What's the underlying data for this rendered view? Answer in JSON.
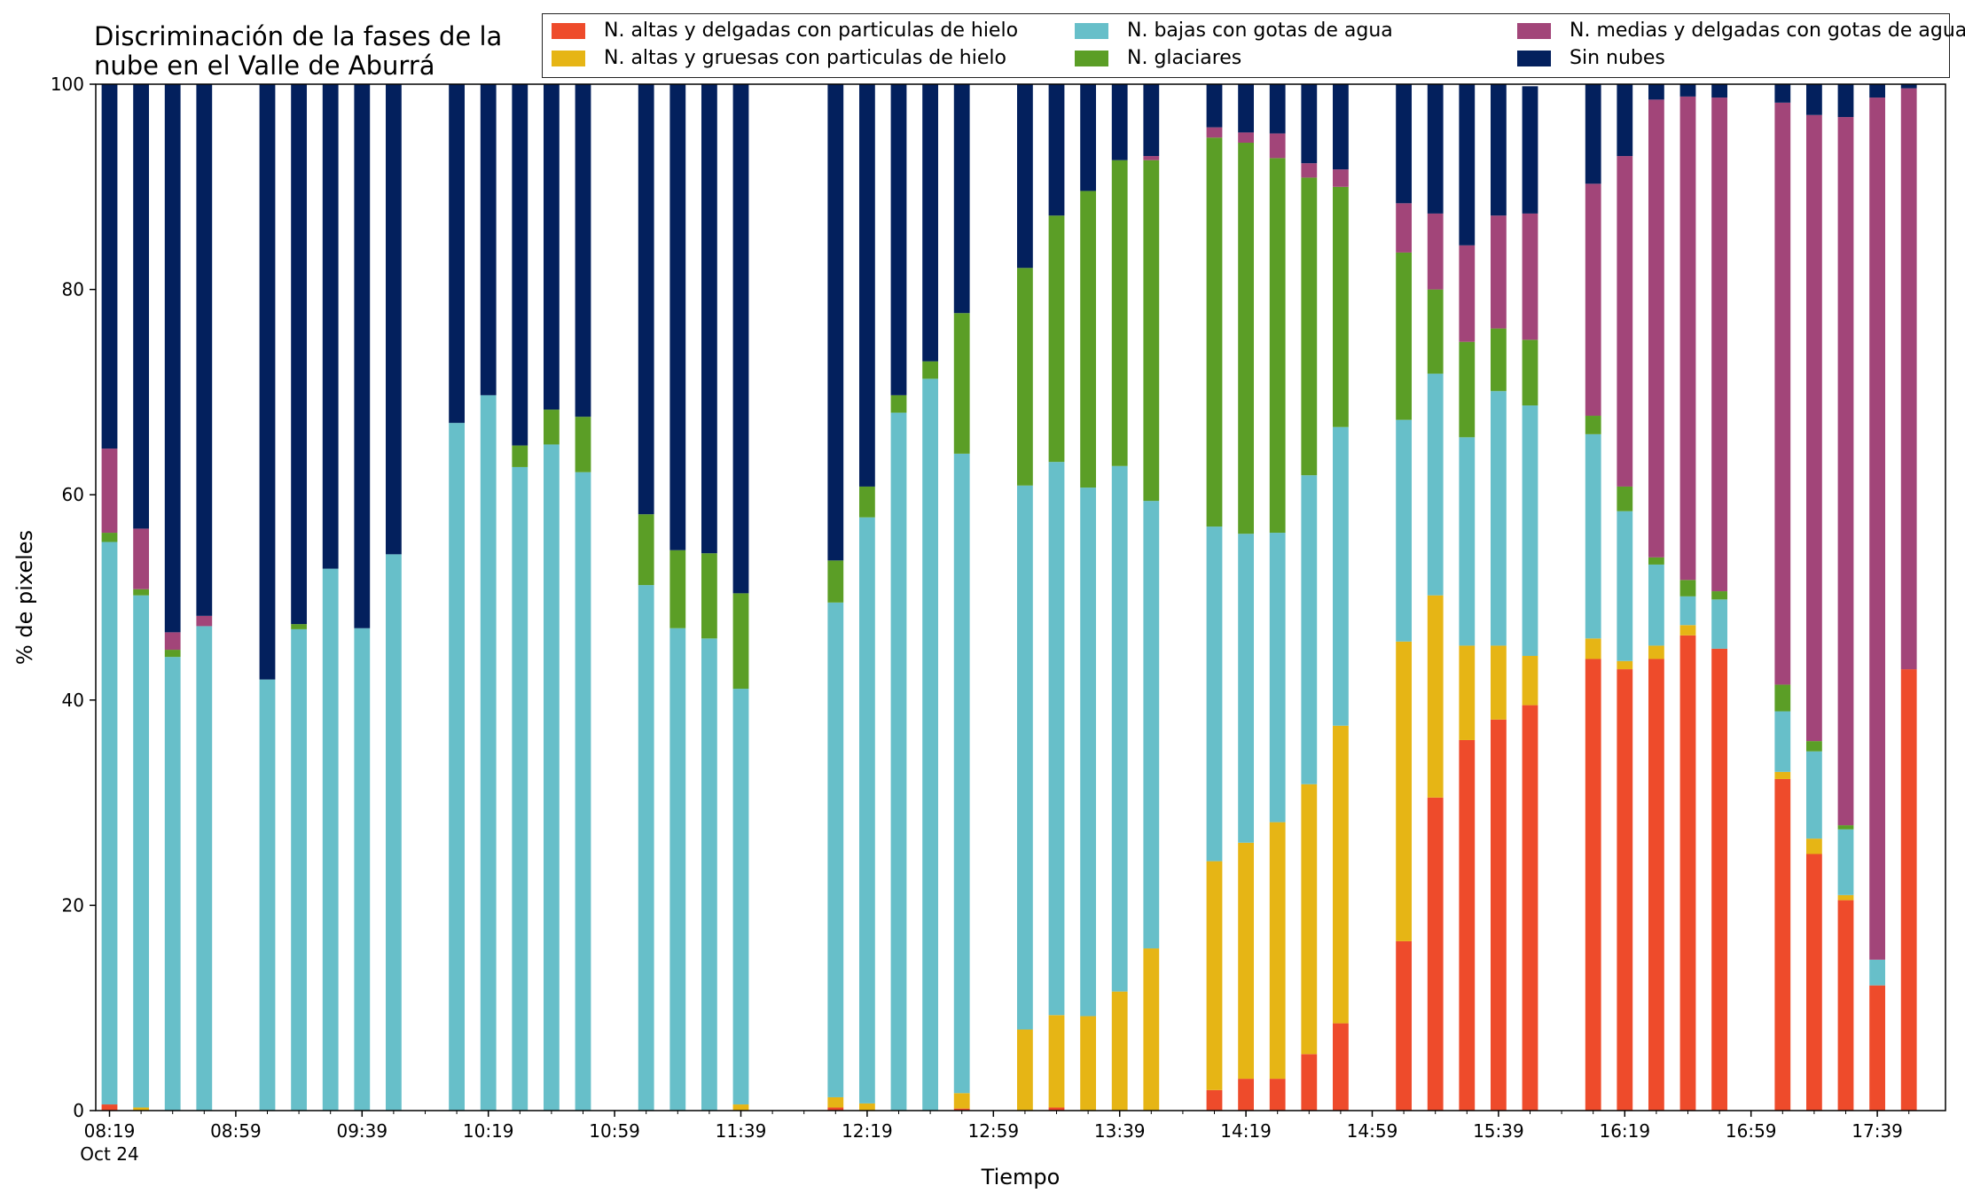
{
  "chart_data": {
    "type": "bar",
    "stacked": true,
    "title": [
      "Discriminación de la fases de la",
      "nube en el Valle de Aburrá"
    ],
    "xlabel": "Tiempo",
    "ylabel": "% de pixeles",
    "ylim": [
      0,
      100
    ],
    "yticks": [
      0,
      20,
      40,
      60,
      80,
      100
    ],
    "xtick_labels": [
      "08:19",
      "08:59",
      "09:39",
      "10:19",
      "10:59",
      "11:39",
      "12:19",
      "12:59",
      "13:39",
      "14:19",
      "14:59",
      "15:39",
      "16:19",
      "16:59",
      "17:39"
    ],
    "xtick_sublabel": "Oct 24",
    "x_start": "08:19",
    "x_step_minutes": 10,
    "x": [
      "08:19",
      "08:29",
      "08:39",
      "08:49",
      "08:59",
      "09:09",
      "09:19",
      "09:29",
      "09:39",
      "09:49",
      "09:59",
      "10:09",
      "10:19",
      "10:29",
      "10:39",
      "10:49",
      "10:59",
      "11:09",
      "11:19",
      "11:29",
      "11:39",
      "11:49",
      "11:59",
      "12:09",
      "12:19",
      "12:29",
      "12:39",
      "12:49",
      "12:59",
      "13:09",
      "13:19",
      "13:29",
      "13:39",
      "13:49",
      "13:59",
      "14:09",
      "14:19",
      "14:29",
      "14:39",
      "14:49",
      "14:59",
      "15:09",
      "15:19",
      "15:29",
      "15:39",
      "15:49",
      "15:59",
      "16:09",
      "16:19",
      "16:29",
      "16:39",
      "16:49",
      "16:59",
      "17:09",
      "17:19",
      "17:29",
      "17:39",
      "17:49"
    ],
    "legend_position": "top-right",
    "grid": false,
    "series": [
      {
        "name": "N. altas y delgadas con particulas de hielo",
        "color": "#ee4b2b",
        "values": [
          0.6,
          0,
          0,
          0,
          null,
          0,
          0,
          0,
          0,
          0,
          null,
          0,
          0,
          0,
          0,
          0,
          null,
          0,
          0,
          0,
          0,
          null,
          null,
          0.3,
          0,
          0,
          0,
          0.2,
          null,
          0,
          0.3,
          0,
          0,
          0,
          null,
          2,
          3.1,
          3.1,
          5.5,
          8.5,
          null,
          16.5,
          30.5,
          36.1,
          38.1,
          39.5,
          null,
          44,
          43,
          44,
          46.3,
          45,
          null,
          32.3,
          25,
          20.5,
          12.2,
          43
        ]
      },
      {
        "name": "N. altas y gruesas con particulas de hielo",
        "color": "#e6b515",
        "values": [
          0,
          0.3,
          0,
          0,
          null,
          0,
          0,
          0,
          0,
          0,
          null,
          0,
          0,
          0,
          0,
          0,
          null,
          0,
          0,
          0,
          0.6,
          null,
          null,
          1,
          0.7,
          0,
          0,
          1.5,
          null,
          7.9,
          9,
          9.2,
          11.6,
          15.8,
          null,
          22.3,
          23,
          25,
          26.3,
          29,
          null,
          29.2,
          19.7,
          9.2,
          7.2,
          4.8,
          null,
          2,
          0.8,
          1.3,
          1,
          0,
          null,
          0.7,
          1.5,
          0.5,
          0,
          0
        ]
      },
      {
        "name": "N. bajas con gotas de agua",
        "color": "#67bfc9",
        "values": [
          54.8,
          49.9,
          44.2,
          47.2,
          null,
          42,
          46.9,
          52.8,
          47,
          54.2,
          null,
          67,
          69.7,
          62.7,
          64.9,
          62.2,
          null,
          51.2,
          47,
          46,
          40.5,
          null,
          null,
          48.2,
          57.1,
          68,
          71.3,
          62.3,
          null,
          53,
          53.9,
          51.5,
          51.2,
          43.6,
          null,
          32.6,
          30.1,
          28.2,
          30.1,
          29.1,
          null,
          21.6,
          21.6,
          20.3,
          24.8,
          24.4,
          null,
          19.9,
          14.6,
          7.9,
          2.8,
          4.8,
          null,
          5.9,
          8.5,
          6.4,
          2.5,
          0
        ]
      },
      {
        "name": "N. glaciares",
        "color": "#5b9e26",
        "values": [
          0.9,
          0.6,
          0.7,
          0,
          null,
          0,
          0.5,
          0,
          0,
          0,
          null,
          0,
          0,
          2.1,
          3.4,
          5.4,
          null,
          6.9,
          7.6,
          8.3,
          9.3,
          null,
          null,
          4.1,
          3,
          1.7,
          1.7,
          13.7,
          null,
          21.2,
          24,
          28.9,
          29.8,
          33.2,
          null,
          37.9,
          38.1,
          36.5,
          29,
          23.4,
          null,
          16.3,
          8.2,
          9.3,
          6.1,
          6.4,
          null,
          1.8,
          2.4,
          0.7,
          1.6,
          0.8,
          null,
          2.6,
          1,
          0.4,
          0,
          0
        ]
      },
      {
        "name": "N. medias y delgadas con gotas de agua",
        "color": "#a24579",
        "values": [
          8.2,
          5.9,
          1.7,
          1,
          null,
          0,
          0,
          0,
          0,
          0,
          null,
          0,
          0,
          0,
          0,
          0,
          null,
          0,
          0,
          0,
          0,
          null,
          null,
          0,
          0,
          0,
          0,
          0,
          null,
          0,
          0,
          0,
          0,
          0.4,
          null,
          1,
          1,
          2.4,
          1.4,
          1.7,
          null,
          4.8,
          7.4,
          9.4,
          11,
          12.3,
          null,
          22.6,
          32.2,
          44.6,
          47.1,
          48.1,
          null,
          56.7,
          61,
          69,
          84,
          56.6
        ]
      },
      {
        "name": "Sin nubes",
        "color": "#03205d",
        "values": [
          35.5,
          43.3,
          53.4,
          51.8,
          null,
          58,
          52.6,
          47.2,
          53,
          45.8,
          null,
          33,
          30.3,
          35.2,
          31.7,
          32.4,
          null,
          41.9,
          45.4,
          45.7,
          49.6,
          null,
          null,
          46.4,
          39.2,
          30.3,
          27,
          22.3,
          null,
          17.9,
          12.8,
          10.4,
          7.4,
          7,
          null,
          4.2,
          4.7,
          4.8,
          7.7,
          8.3,
          null,
          11.6,
          12.6,
          15.7,
          12.8,
          12.4,
          null,
          9.7,
          7,
          1.5,
          1.2,
          1.3,
          null,
          1.8,
          3,
          3.2,
          1.3,
          0.4
        ]
      }
    ]
  }
}
